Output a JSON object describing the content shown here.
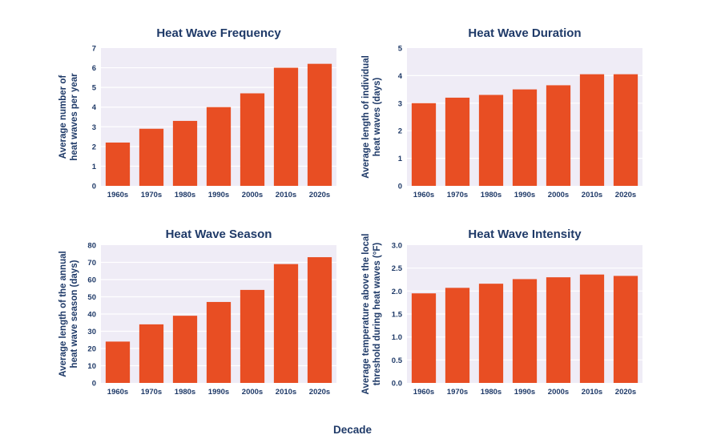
{
  "colors": {
    "bar": "#e84e23",
    "plot_bg": "#efecf6",
    "grid": "#ffffff",
    "text": "#1f3a68"
  },
  "shared_xlabel": "Decade",
  "chart_data": [
    {
      "type": "bar",
      "title": "Heat Wave Frequency",
      "ylabel_lines": [
        "Average number of",
        "heat waves per year"
      ],
      "categories": [
        "1960s",
        "1970s",
        "1980s",
        "1990s",
        "2000s",
        "2010s",
        "2020s"
      ],
      "values": [
        2.2,
        2.9,
        3.3,
        4.0,
        4.7,
        6.0,
        6.2
      ],
      "ylim": [
        0,
        7
      ],
      "yticks": [
        "0",
        "1",
        "2",
        "3",
        "4",
        "5",
        "6",
        "7"
      ],
      "grid": true
    },
    {
      "type": "bar",
      "title": "Heat Wave Duration",
      "ylabel_lines": [
        "Average length of individual",
        "heat waves (days)"
      ],
      "categories": [
        "1960s",
        "1970s",
        "1980s",
        "1990s",
        "2000s",
        "2010s",
        "2020s"
      ],
      "values": [
        3.0,
        3.2,
        3.3,
        3.5,
        3.65,
        4.05,
        4.05
      ],
      "ylim": [
        0,
        5
      ],
      "yticks": [
        "0",
        "1",
        "2",
        "3",
        "4",
        "5"
      ],
      "grid": true
    },
    {
      "type": "bar",
      "title": "Heat Wave Season",
      "ylabel_lines": [
        "Average length of the annual",
        "heat wave season (days)"
      ],
      "categories": [
        "1960s",
        "1970s",
        "1980s",
        "1990s",
        "2000s",
        "2010s",
        "2020s"
      ],
      "values": [
        24,
        34,
        39,
        47,
        54,
        69,
        73
      ],
      "ylim": [
        0,
        80
      ],
      "yticks": [
        "0",
        "10",
        "20",
        "30",
        "40",
        "50",
        "60",
        "70",
        "80"
      ],
      "grid": true
    },
    {
      "type": "bar",
      "title": "Heat Wave Intensity",
      "ylabel_lines": [
        "Average temperature above the local",
        "threshold during heat waves (°F)"
      ],
      "categories": [
        "1960s",
        "1970s",
        "1980s",
        "1990s",
        "2000s",
        "2010s",
        "2020s"
      ],
      "values": [
        1.95,
        2.07,
        2.16,
        2.26,
        2.3,
        2.36,
        2.33
      ],
      "ylim": [
        0,
        3.0
      ],
      "yticks": [
        "0.0",
        "0.5",
        "1.0",
        "1.5",
        "2.0",
        "2.5",
        "3.0"
      ],
      "grid": true
    }
  ]
}
